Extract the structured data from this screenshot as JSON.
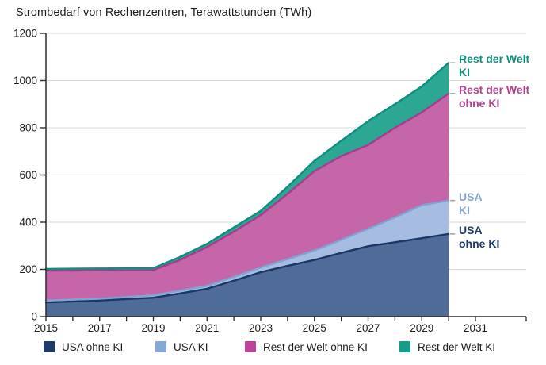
{
  "title": "Strombedarf von Rechenzentren, Terawattstunden (TWh)",
  "units": "TWh",
  "chart_data": {
    "type": "area",
    "stacked": true,
    "title": "Strombedarf von Rechenzentren, Terawattstunden (TWh)",
    "xlabel": "",
    "ylabel": "TWh",
    "x": [
      2015,
      2016,
      2017,
      2018,
      2019,
      2020,
      2021,
      2022,
      2023,
      2024,
      2025,
      2026,
      2027,
      2028,
      2029,
      2030
    ],
    "series": [
      {
        "name": "USA ohne KI",
        "values": [
          60,
          64,
          68,
          74,
          80,
          98,
          118,
          152,
          188,
          215,
          240,
          270,
          298,
          315,
          332,
          350
        ],
        "fill": "#4f6c98",
        "line": "#1a3766",
        "legend_color": "#1d3a69"
      },
      {
        "name": "USA KI",
        "values": [
          8,
          8,
          8,
          9,
          10,
          12,
          12,
          16,
          20,
          28,
          40,
          55,
          74,
          105,
          140,
          142
        ],
        "fill": "#a6bde1",
        "line": "#7fa3d3",
        "legend_color": "#86a8d8"
      },
      {
        "name": "Rest der Welt ohne KI",
        "values": [
          127,
          123,
          120,
          113,
          107,
          130,
          165,
          192,
          222,
          277,
          336,
          355,
          355,
          380,
          393,
          453
        ],
        "fill": "#c566a9",
        "line": "#a63c8c",
        "legend_color": "#bb4499"
      },
      {
        "name": "Rest der Welt KI",
        "values": [
          7,
          8,
          8,
          9,
          8,
          13,
          13,
          18,
          18,
          30,
          44,
          65,
          101,
          100,
          110,
          130
        ],
        "fill": "#2ba794",
        "line": "#0d8f7c",
        "legend_color": "#169c87"
      }
    ],
    "xlim": [
      2015,
      2031
    ],
    "ylim": [
      0,
      1200
    ],
    "yticks": [
      0,
      200,
      400,
      600,
      800,
      1000,
      1200
    ],
    "xticks_minor_every": 1,
    "xticks_labeled": [
      2015,
      2017,
      2019,
      2021,
      2023,
      2025,
      2027,
      2029,
      2031
    ],
    "grid": "horizontal",
    "legend_position": "bottom",
    "annotations": [
      {
        "series_index": 3,
        "lines": [
          "Rest der Welt",
          "KI"
        ],
        "color": "#0f907e"
      },
      {
        "series_index": 2,
        "lines": [
          "Rest der Welt",
          "ohne KI"
        ],
        "color": "#b2418f"
      },
      {
        "series_index": 1,
        "lines": [
          "USA",
          "KI"
        ],
        "color": "#86a5d3"
      },
      {
        "series_index": 0,
        "lines": [
          "USA",
          "ohne KI"
        ],
        "color": "#1c3a6b"
      }
    ]
  },
  "colors": {
    "axis": "#2b2b2b",
    "grid": "#d7d7d7",
    "tick_label": "#1d1d1b",
    "annotation_dash": "#9e9e9e",
    "edge_guide": "#cfcfcf"
  }
}
